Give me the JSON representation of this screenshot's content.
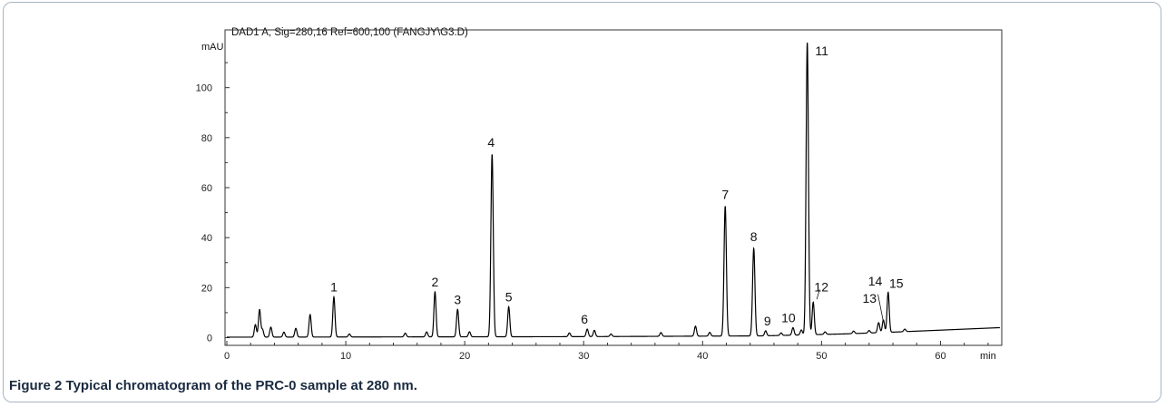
{
  "caption": {
    "label": "Figure 2",
    "text": "Typical chromatogram of the PRC-0 sample at 280 nm."
  },
  "chart_data": {
    "type": "line",
    "title": "DAD1 A, Sig=280,16 Ref=600,100 (FANGJY\\G3.D)",
    "xlabel": "min",
    "ylabel": "mAU",
    "xlim": [
      0,
      65
    ],
    "ylim": [
      -2,
      122
    ],
    "x_ticks": [
      0,
      10,
      20,
      30,
      40,
      50,
      60
    ],
    "y_ticks": [
      0,
      20,
      40,
      60,
      80,
      100
    ],
    "grid": false,
    "baseline": [
      [
        0,
        0.2
      ],
      [
        2,
        0.2
      ],
      [
        30,
        0.4
      ],
      [
        45,
        0.7
      ],
      [
        52,
        1.5
      ],
      [
        56,
        2.2
      ],
      [
        60,
        3.0
      ],
      [
        65,
        4.0
      ]
    ],
    "peaks": [
      {
        "label": "",
        "rt": 2.4,
        "height": 5
      },
      {
        "label": "",
        "rt": 2.75,
        "height": 11
      },
      {
        "label": "",
        "rt": 3.0,
        "height": 3
      },
      {
        "label": "",
        "rt": 3.7,
        "height": 4
      },
      {
        "label": "",
        "rt": 4.8,
        "height": 2
      },
      {
        "label": "",
        "rt": 5.8,
        "height": 3.5
      },
      {
        "label": "",
        "rt": 7.0,
        "height": 9
      },
      {
        "label": "1",
        "rt": 9.0,
        "height": 16
      },
      {
        "label": "",
        "rt": 10.3,
        "height": 1.2
      },
      {
        "label": "",
        "rt": 15.0,
        "height": 1.5
      },
      {
        "label": "",
        "rt": 16.8,
        "height": 2
      },
      {
        "label": "2",
        "rt": 17.5,
        "height": 18
      },
      {
        "label": "3",
        "rt": 19.4,
        "height": 11
      },
      {
        "label": "",
        "rt": 20.4,
        "height": 2
      },
      {
        "label": "4",
        "rt": 22.3,
        "height": 73
      },
      {
        "label": "5",
        "rt": 23.7,
        "height": 12
      },
      {
        "label": "",
        "rt": 28.8,
        "height": 1.5
      },
      {
        "label": "6",
        "rt": 30.3,
        "height": 3
      },
      {
        "label": "",
        "rt": 30.9,
        "height": 2.5
      },
      {
        "label": "",
        "rt": 32.3,
        "height": 1
      },
      {
        "label": "",
        "rt": 36.5,
        "height": 1.5
      },
      {
        "label": "",
        "rt": 39.4,
        "height": 4
      },
      {
        "label": "",
        "rt": 40.6,
        "height": 1.5
      },
      {
        "label": "7",
        "rt": 41.9,
        "height": 52
      },
      {
        "label": "8",
        "rt": 44.3,
        "height": 35
      },
      {
        "label": "9",
        "rt": 45.3,
        "height": 2
      },
      {
        "label": "",
        "rt": 46.6,
        "height": 1
      },
      {
        "label": "10",
        "rt": 47.6,
        "height": 3
      },
      {
        "label": "",
        "rt": 48.3,
        "height": 2
      },
      {
        "label": "11",
        "rt": 48.8,
        "height": 117
      },
      {
        "label": "12",
        "rt": 49.3,
        "height": 13
      },
      {
        "label": "",
        "rt": 50.3,
        "height": 1
      },
      {
        "label": "",
        "rt": 52.7,
        "height": 1
      },
      {
        "label": "",
        "rt": 54.0,
        "height": 1
      },
      {
        "label": "13",
        "rt": 54.8,
        "height": 4
      },
      {
        "label": "14",
        "rt": 55.2,
        "height": 5
      },
      {
        "label": "15",
        "rt": 55.6,
        "height": 16
      },
      {
        "label": "",
        "rt": 57.0,
        "height": 1
      }
    ]
  }
}
